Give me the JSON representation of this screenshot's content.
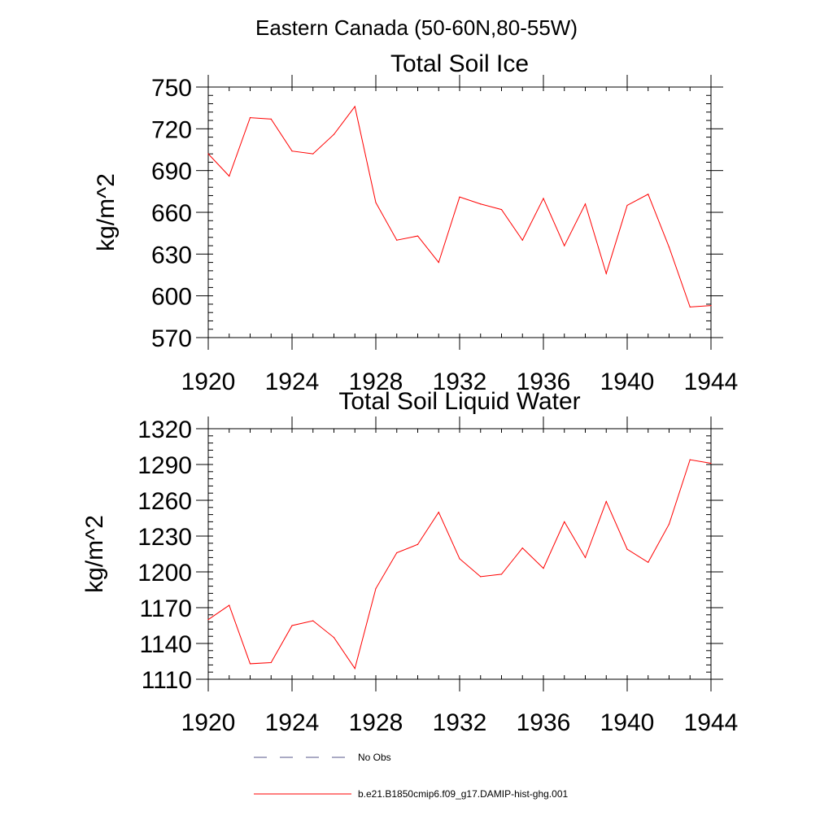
{
  "figure": {
    "title": "Eastern Canada (50-60N,80-55W)",
    "legend": [
      {
        "label": "No Obs",
        "style": "dashed",
        "color": "#555588"
      },
      {
        "label": "b.e21.B1850cmip6.f09_g17.DAMIP-hist-ghg.001",
        "style": "solid",
        "color": "#ff0000"
      }
    ]
  },
  "chart_data": [
    {
      "type": "line",
      "title": "Total Soil Ice",
      "xlabel": "",
      "ylabel": "kg/m^2",
      "xlim": [
        1920,
        1944
      ],
      "ylim": [
        570,
        750
      ],
      "xticks": [
        1920,
        1924,
        1928,
        1932,
        1936,
        1940,
        1944
      ],
      "yticks": [
        570,
        600,
        630,
        660,
        690,
        720,
        750
      ],
      "x": [
        1920,
        1921,
        1922,
        1923,
        1924,
        1925,
        1926,
        1927,
        1928,
        1929,
        1930,
        1931,
        1932,
        1933,
        1934,
        1935,
        1936,
        1937,
        1938,
        1939,
        1940,
        1941,
        1942,
        1943,
        1944
      ],
      "series": [
        {
          "name": "b.e21.B1850cmip6.f09_g17.DAMIP-hist-ghg.001",
          "color": "#ff0000",
          "values": [
            702,
            686,
            728,
            727,
            704,
            702,
            716,
            736,
            667,
            640,
            643,
            624,
            671,
            666,
            662,
            640,
            670,
            636,
            666,
            616,
            665,
            673,
            635,
            592,
            593
          ]
        }
      ]
    },
    {
      "type": "line",
      "title": "Total Soil Liquid Water",
      "xlabel": "",
      "ylabel": "kg/m^2",
      "xlim": [
        1920,
        1944
      ],
      "ylim": [
        1110,
        1320
      ],
      "xticks": [
        1920,
        1924,
        1928,
        1932,
        1936,
        1940,
        1944
      ],
      "yticks": [
        1110,
        1140,
        1170,
        1200,
        1230,
        1260,
        1290,
        1320
      ],
      "x": [
        1920,
        1921,
        1922,
        1923,
        1924,
        1925,
        1926,
        1927,
        1928,
        1929,
        1930,
        1931,
        1932,
        1933,
        1934,
        1935,
        1936,
        1937,
        1938,
        1939,
        1940,
        1941,
        1942,
        1943,
        1944
      ],
      "series": [
        {
          "name": "b.e21.B1850cmip6.f09_g17.DAMIP-hist-ghg.001",
          "color": "#ff0000",
          "values": [
            1160,
            1172,
            1123,
            1124,
            1155,
            1159,
            1145,
            1119,
            1186,
            1216,
            1223,
            1250,
            1211,
            1196,
            1198,
            1220,
            1203,
            1242,
            1212,
            1259,
            1219,
            1208,
            1240,
            1294,
            1291
          ]
        }
      ]
    }
  ]
}
